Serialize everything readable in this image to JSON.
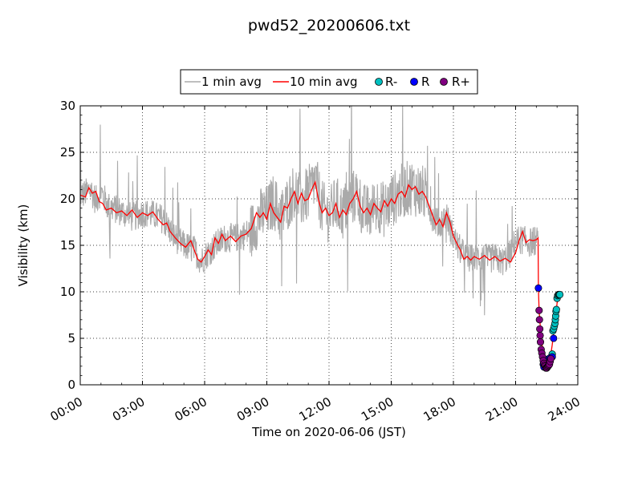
{
  "chart_data": {
    "type": "line",
    "title": "pwd52_20200606.txt",
    "xlabel": "Time on 2020-06-06 (JST)",
    "ylabel": "Visibility (km)",
    "xlim": [
      "00:00",
      "24:00"
    ],
    "ylim": [
      0,
      30
    ],
    "x_ticks": [
      "00:00",
      "03:00",
      "06:00",
      "09:00",
      "12:00",
      "15:00",
      "18:00",
      "21:00",
      "24:00"
    ],
    "y_ticks": [
      "0",
      "5",
      "10",
      "15",
      "20",
      "25",
      "30"
    ],
    "grid": true,
    "legend_position": "top-center",
    "legend": [
      "1 min avg",
      "10 min avg",
      "R-",
      "R",
      "R+"
    ],
    "series": [
      {
        "name": "1 min avg",
        "color": "#aaaaaa",
        "kind": "line",
        "anchors": [
          [
            "00:00",
            20.5
          ],
          [
            "00:10",
            20.5
          ],
          [
            "00:30",
            21.0
          ],
          [
            "00:45",
            19.8
          ],
          [
            "01:00",
            20.8
          ],
          [
            "01:20",
            19.2
          ],
          [
            "02:00",
            18.6
          ],
          [
            "02:30",
            18.0
          ],
          [
            "03:00",
            18.5
          ],
          [
            "03:30",
            18.3
          ],
          [
            "04:00",
            17.8
          ],
          [
            "04:30",
            16.0
          ],
          [
            "05:00",
            15.0
          ],
          [
            "05:30",
            14.5
          ],
          [
            "05:50",
            13.3
          ],
          [
            "06:10",
            14.2
          ],
          [
            "06:30",
            15.0
          ],
          [
            "07:00",
            15.8
          ],
          [
            "07:30",
            15.8
          ],
          [
            "08:00",
            16.2
          ],
          [
            "08:20",
            16.8
          ],
          [
            "08:40",
            18.2
          ],
          [
            "09:00",
            18.5
          ],
          [
            "09:20",
            19.8
          ],
          [
            "09:40",
            18.0
          ],
          [
            "10:00",
            19.5
          ],
          [
            "10:20",
            21.0
          ],
          [
            "10:40",
            19.8
          ],
          [
            "11:00",
            20.5
          ],
          [
            "11:20",
            22.0
          ],
          [
            "11:40",
            19.0
          ],
          [
            "12:00",
            18.2
          ],
          [
            "12:20",
            19.5
          ],
          [
            "12:40",
            18.5
          ],
          [
            "13:00",
            19.8
          ],
          [
            "13:20",
            20.5
          ],
          [
            "13:40",
            18.6
          ],
          [
            "14:00",
            18.5
          ],
          [
            "14:20",
            19.5
          ],
          [
            "14:40",
            18.8
          ],
          [
            "15:00",
            19.8
          ],
          [
            "15:20",
            20.5
          ],
          [
            "15:40",
            21.0
          ],
          [
            "16:00",
            21.3
          ],
          [
            "16:20",
            20.8
          ],
          [
            "16:40",
            20.5
          ],
          [
            "17:00",
            18.0
          ],
          [
            "17:20",
            17.2
          ],
          [
            "17:40",
            18.2
          ],
          [
            "18:00",
            15.8
          ],
          [
            "18:20",
            14.5
          ],
          [
            "18:40",
            13.5
          ],
          [
            "19:00",
            13.6
          ],
          [
            "19:20",
            13.8
          ],
          [
            "19:40",
            13.5
          ],
          [
            "20:00",
            13.7
          ],
          [
            "20:20",
            13.2
          ],
          [
            "20:40",
            13.8
          ],
          [
            "21:00",
            15.5
          ],
          [
            "21:20",
            15.6
          ],
          [
            "21:40",
            15.3
          ],
          [
            "22:00",
            15.5
          ],
          [
            "22:05",
            15.4
          ]
        ],
        "noise_amplitude": 1.6
      },
      {
        "name": "10 min avg",
        "color": "#ff0000",
        "kind": "line",
        "points": [
          [
            "00:00",
            20.4
          ],
          [
            "00:15",
            20.2
          ],
          [
            "00:25",
            21.2
          ],
          [
            "00:35",
            20.6
          ],
          [
            "00:45",
            20.8
          ],
          [
            "00:55",
            19.7
          ],
          [
            "01:05",
            19.5
          ],
          [
            "01:15",
            18.8
          ],
          [
            "01:30",
            19.0
          ],
          [
            "01:45",
            18.5
          ],
          [
            "02:00",
            18.7
          ],
          [
            "02:15",
            18.2
          ],
          [
            "02:30",
            18.8
          ],
          [
            "02:45",
            18.0
          ],
          [
            "03:00",
            18.5
          ],
          [
            "03:15",
            18.2
          ],
          [
            "03:30",
            18.6
          ],
          [
            "03:45",
            17.8
          ],
          [
            "04:00",
            17.2
          ],
          [
            "04:10",
            17.4
          ],
          [
            "04:20",
            16.5
          ],
          [
            "04:35",
            15.8
          ],
          [
            "04:50",
            15.2
          ],
          [
            "05:05",
            14.8
          ],
          [
            "05:20",
            15.5
          ],
          [
            "05:30",
            14.5
          ],
          [
            "05:40",
            13.5
          ],
          [
            "05:50",
            13.2
          ],
          [
            "06:00",
            13.8
          ],
          [
            "06:10",
            14.5
          ],
          [
            "06:20",
            14.0
          ],
          [
            "06:30",
            15.8
          ],
          [
            "06:40",
            15.2
          ],
          [
            "06:50",
            16.2
          ],
          [
            "07:00",
            15.5
          ],
          [
            "07:15",
            16.0
          ],
          [
            "07:30",
            15.4
          ],
          [
            "07:45",
            16.0
          ],
          [
            "08:00",
            16.2
          ],
          [
            "08:15",
            16.8
          ],
          [
            "08:30",
            18.5
          ],
          [
            "08:40",
            18.0
          ],
          [
            "08:50",
            18.5
          ],
          [
            "09:00",
            17.8
          ],
          [
            "09:10",
            19.5
          ],
          [
            "09:20",
            18.5
          ],
          [
            "09:30",
            18.0
          ],
          [
            "09:40",
            17.5
          ],
          [
            "09:50",
            19.2
          ],
          [
            "10:00",
            19.0
          ],
          [
            "10:10",
            20.0
          ],
          [
            "10:20",
            20.8
          ],
          [
            "10:30",
            19.5
          ],
          [
            "10:40",
            20.6
          ],
          [
            "10:50",
            19.8
          ],
          [
            "11:00",
            20.0
          ],
          [
            "11:10",
            21.0
          ],
          [
            "11:20",
            21.8
          ],
          [
            "11:30",
            19.8
          ],
          [
            "11:40",
            18.5
          ],
          [
            "11:50",
            19.0
          ],
          [
            "12:00",
            18.2
          ],
          [
            "12:10",
            18.5
          ],
          [
            "12:20",
            19.5
          ],
          [
            "12:30",
            18.0
          ],
          [
            "12:40",
            18.8
          ],
          [
            "12:50",
            18.3
          ],
          [
            "13:00",
            19.5
          ],
          [
            "13:10",
            20.0
          ],
          [
            "13:20",
            20.8
          ],
          [
            "13:30",
            19.2
          ],
          [
            "13:40",
            18.5
          ],
          [
            "13:50",
            19.0
          ],
          [
            "14:00",
            18.3
          ],
          [
            "14:10",
            19.5
          ],
          [
            "14:20",
            19.0
          ],
          [
            "14:30",
            18.6
          ],
          [
            "14:40",
            19.8
          ],
          [
            "14:50",
            19.2
          ],
          [
            "15:00",
            20.0
          ],
          [
            "15:10",
            19.5
          ],
          [
            "15:20",
            20.5
          ],
          [
            "15:30",
            20.8
          ],
          [
            "15:40",
            20.2
          ],
          [
            "15:50",
            21.5
          ],
          [
            "16:00",
            21.0
          ],
          [
            "16:10",
            21.3
          ],
          [
            "16:20",
            20.5
          ],
          [
            "16:30",
            20.8
          ],
          [
            "16:40",
            20.2
          ],
          [
            "16:50",
            19.2
          ],
          [
            "17:00",
            18.2
          ],
          [
            "17:10",
            17.2
          ],
          [
            "17:20",
            17.8
          ],
          [
            "17:30",
            17.0
          ],
          [
            "17:40",
            18.5
          ],
          [
            "17:50",
            17.5
          ],
          [
            "18:00",
            16.0
          ],
          [
            "18:10",
            15.2
          ],
          [
            "18:20",
            14.5
          ],
          [
            "18:30",
            13.5
          ],
          [
            "18:40",
            13.8
          ],
          [
            "18:50",
            13.4
          ],
          [
            "19:00",
            13.8
          ],
          [
            "19:15",
            13.5
          ],
          [
            "19:30",
            13.9
          ],
          [
            "19:45",
            13.4
          ],
          [
            "20:00",
            13.8
          ],
          [
            "20:15",
            13.3
          ],
          [
            "20:30",
            13.6
          ],
          [
            "20:45",
            13.2
          ],
          [
            "21:00",
            14.2
          ],
          [
            "21:10",
            15.5
          ],
          [
            "21:20",
            16.5
          ],
          [
            "21:30",
            15.3
          ],
          [
            "21:40",
            15.6
          ],
          [
            "21:50",
            15.5
          ],
          [
            "22:00",
            15.6
          ],
          [
            "22:05",
            15.8
          ],
          [
            "22:06",
            10.4
          ],
          [
            "22:08",
            8.0
          ],
          [
            "22:10",
            7.0
          ],
          [
            "22:12",
            6.0
          ],
          [
            "22:14",
            5.3
          ],
          [
            "22:16",
            4.6
          ],
          [
            "22:18",
            3.8
          ],
          [
            "22:20",
            3.3
          ],
          [
            "22:22",
            2.8
          ],
          [
            "22:24",
            2.4
          ],
          [
            "22:26",
            2.1
          ],
          [
            "22:28",
            1.9
          ],
          [
            "22:30",
            1.8
          ],
          [
            "22:32",
            1.7
          ],
          [
            "22:34",
            1.8
          ],
          [
            "22:36",
            2.0
          ],
          [
            "22:38",
            2.3
          ],
          [
            "22:40",
            2.8
          ],
          [
            "22:42",
            3.2
          ],
          [
            "22:44",
            3.8
          ],
          [
            "22:46",
            4.3
          ],
          [
            "22:48",
            5.0
          ],
          [
            "22:50",
            5.6
          ],
          [
            "22:52",
            6.0
          ],
          [
            "22:54",
            6.5
          ],
          [
            "22:56",
            7.2
          ],
          [
            "22:58",
            8.0
          ],
          [
            "23:00",
            8.8
          ],
          [
            "23:05",
            9.6
          ],
          [
            "23:10",
            9.7
          ],
          [
            "23:15",
            9.7
          ]
        ]
      },
      {
        "name": "R-",
        "color": "#00c0c0",
        "kind": "scatter",
        "points": [
          [
            "22:44",
            3.0
          ],
          [
            "22:46",
            3.3
          ],
          [
            "22:48",
            5.8
          ],
          [
            "22:50",
            6.0
          ],
          [
            "22:52",
            6.3
          ],
          [
            "22:54",
            6.6
          ],
          [
            "22:55",
            7.0
          ],
          [
            "22:56",
            7.4
          ],
          [
            "22:57",
            7.9
          ],
          [
            "22:58",
            8.1
          ],
          [
            "23:00",
            9.3
          ],
          [
            "23:02",
            9.6
          ],
          [
            "23:04",
            9.7
          ],
          [
            "23:06",
            9.7
          ],
          [
            "23:08",
            9.7
          ]
        ]
      },
      {
        "name": "R",
        "color": "#0000ff",
        "kind": "scatter",
        "points": [
          [
            "22:06",
            10.4
          ],
          [
            "22:20",
            2.2
          ],
          [
            "22:22",
            1.9
          ],
          [
            "22:32",
            2.5
          ],
          [
            "22:36",
            2.8
          ],
          [
            "22:40",
            2.9
          ],
          [
            "22:46",
            3.0
          ],
          [
            "22:50",
            5.0
          ]
        ]
      },
      {
        "name": "R+",
        "color": "#800080",
        "kind": "scatter",
        "points": [
          [
            "22:08",
            8.0
          ],
          [
            "22:09",
            7.0
          ],
          [
            "22:10",
            6.0
          ],
          [
            "22:11",
            5.3
          ],
          [
            "22:12",
            4.6
          ],
          [
            "22:14",
            3.8
          ],
          [
            "22:16",
            3.4
          ],
          [
            "22:18",
            3.0
          ],
          [
            "22:20",
            2.6
          ],
          [
            "22:22",
            2.3
          ],
          [
            "22:24",
            2.1
          ],
          [
            "22:26",
            2.0
          ],
          [
            "22:28",
            1.8
          ],
          [
            "22:30",
            1.8
          ],
          [
            "22:32",
            1.9
          ],
          [
            "22:34",
            2.0
          ],
          [
            "22:36",
            2.1
          ],
          [
            "22:38",
            2.2
          ],
          [
            "22:40",
            2.5
          ],
          [
            "22:42",
            2.8
          ]
        ]
      }
    ]
  }
}
